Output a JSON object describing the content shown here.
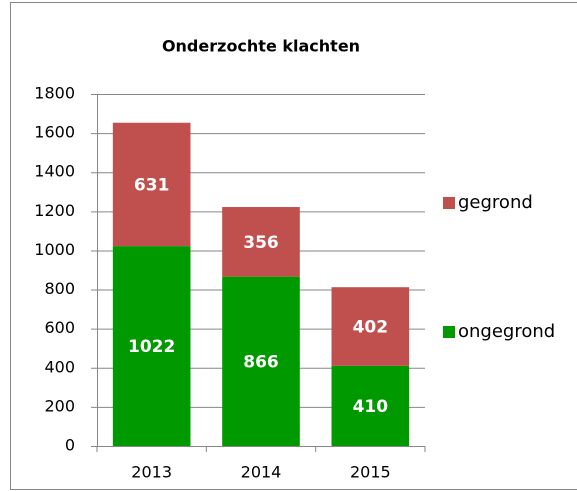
{
  "chart_data": {
    "type": "bar",
    "stacked": true,
    "title": "Onderzochte klachten",
    "categories": [
      "2013",
      "2014",
      "2015"
    ],
    "series": [
      {
        "name": "ongegrond",
        "color": "#009900",
        "values": [
          1022,
          866,
          410
        ]
      },
      {
        "name": "gegrond",
        "color": "#c0504d",
        "values": [
          631,
          356,
          402
        ]
      }
    ],
    "ylim": [
      0,
      1800
    ],
    "yticks": [
      0,
      200,
      400,
      600,
      800,
      1000,
      1200,
      1400,
      1600,
      1800
    ],
    "grid": true,
    "legend": "right"
  }
}
